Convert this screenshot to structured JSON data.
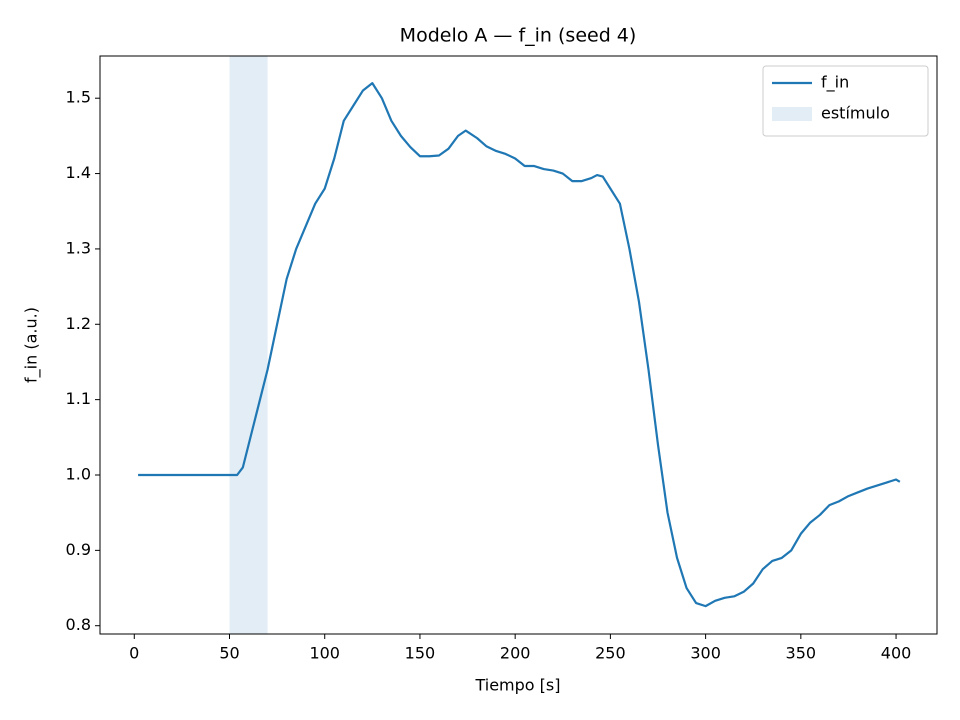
{
  "chart_data": {
    "type": "line",
    "title": "Modelo A — f_in (seed 4)",
    "xlabel": "Tiempo [s]",
    "ylabel": "f_in (a.u.)",
    "x": [
      2,
      10,
      20,
      30,
      40,
      50,
      54,
      57,
      60,
      65,
      70,
      75,
      80,
      85,
      90,
      95,
      100,
      105,
      110,
      115,
      120,
      125,
      130,
      135,
      140,
      145,
      150,
      155,
      160,
      165,
      170,
      174,
      180,
      185,
      190,
      195,
      200,
      205,
      210,
      215,
      220,
      225,
      230,
      235,
      240,
      243,
      246,
      250,
      255,
      260,
      265,
      270,
      275,
      280,
      285,
      290,
      295,
      300,
      305,
      310,
      315,
      320,
      325,
      330,
      335,
      340,
      345,
      350,
      355,
      360,
      365,
      370,
      375,
      380,
      385,
      390,
      395,
      400,
      402
    ],
    "series": [
      {
        "name": "f_in",
        "color": "#1f77b4",
        "values": [
          1.0,
          1.0,
          1.0,
          1.0,
          1.0,
          1.0,
          1.0,
          1.01,
          1.04,
          1.09,
          1.14,
          1.2,
          1.26,
          1.3,
          1.33,
          1.36,
          1.38,
          1.42,
          1.47,
          1.49,
          1.51,
          1.52,
          1.5,
          1.47,
          1.45,
          1.435,
          1.423,
          1.423,
          1.424,
          1.433,
          1.45,
          1.457,
          1.447,
          1.436,
          1.43,
          1.426,
          1.42,
          1.41,
          1.41,
          1.406,
          1.404,
          1.4,
          1.39,
          1.39,
          1.394,
          1.398,
          1.396,
          1.38,
          1.36,
          1.3,
          1.23,
          1.14,
          1.04,
          0.95,
          0.89,
          0.85,
          0.83,
          0.826,
          0.833,
          0.837,
          0.839,
          0.845,
          0.856,
          0.875,
          0.886,
          0.89,
          0.9,
          0.922,
          0.937,
          0.947,
          0.96,
          0.965,
          0.972,
          0.977,
          0.982,
          0.986,
          0.99,
          0.994,
          0.991
        ]
      }
    ],
    "stimulus": {
      "name": "estímulo",
      "start": 50,
      "end": 70,
      "color": "#1f77b4",
      "opacity": 0.13
    },
    "xlim": [
      -18,
      421.5
    ],
    "ylim": [
      0.789,
      1.556
    ],
    "xticks": [
      0,
      50,
      100,
      150,
      200,
      250,
      300,
      350,
      400
    ],
    "yticks": [
      0.8,
      0.9,
      {
        "value": 1.0,
        "label": "1.0"
      },
      1.1,
      1.2,
      1.3,
      1.4,
      1.5
    ],
    "grid": false,
    "legend": "upper right"
  }
}
